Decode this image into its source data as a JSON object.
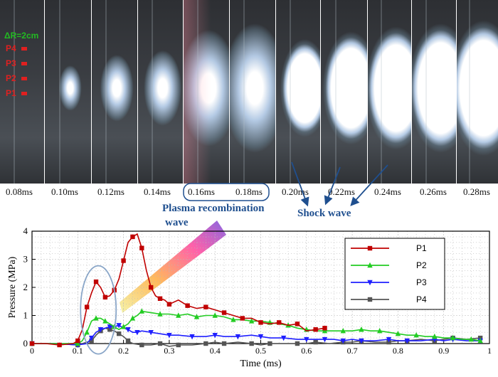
{
  "frames": {
    "labels": [
      "0.08ms",
      "0.10ms",
      "0.12ms",
      "0.14ms",
      "0.16ms",
      "0.18ms",
      "0.20ms",
      "0.22ms",
      "0.24ms",
      "0.26ms",
      "0.28ms"
    ],
    "sensor_spacing": "ΔR=2cm",
    "sensor_names": [
      "P4",
      "P3",
      "P2",
      "P1"
    ]
  },
  "annotations": {
    "plasma_line1": "Plasma recombination",
    "plasma_line2": "wave",
    "shock": "Shock wave"
  },
  "colors": {
    "P1": "#c00000",
    "P2": "#22cc22",
    "P3": "#1f1fff",
    "P4": "#555555",
    "annotation": "#1f4f8f",
    "sensor_text": "#e02020",
    "spacing_text": "#22bb22"
  },
  "chart_data": {
    "type": "line",
    "xlabel": "Time (ms)",
    "ylabel": "Pressure (MPa)",
    "xlim": [
      0,
      1
    ],
    "ylim": [
      0,
      4
    ],
    "x_ticks": [
      "0",
      "0.1",
      "0.2",
      "0.3",
      "0.4",
      "0.5",
      "0.6",
      "0.7",
      "0.8",
      "0.9",
      "1"
    ],
    "y_ticks": [
      "0",
      "1",
      "2",
      "3",
      "4"
    ],
    "grid": true,
    "legend_position": "right",
    "series": [
      {
        "name": "P1",
        "marker": "square",
        "color": "#c00000",
        "points": [
          [
            0,
            0
          ],
          [
            0.03,
            0
          ],
          [
            0.06,
            -0.05
          ],
          [
            0.09,
            0
          ],
          [
            0.1,
            0.1
          ],
          [
            0.11,
            0.5
          ],
          [
            0.12,
            1.3
          ],
          [
            0.13,
            1.8
          ],
          [
            0.14,
            2.2
          ],
          [
            0.15,
            2.0
          ],
          [
            0.16,
            1.65
          ],
          [
            0.17,
            1.7
          ],
          [
            0.18,
            1.9
          ],
          [
            0.19,
            2.3
          ],
          [
            0.2,
            2.95
          ],
          [
            0.21,
            3.6
          ],
          [
            0.22,
            3.8
          ],
          [
            0.23,
            3.9
          ],
          [
            0.24,
            3.4
          ],
          [
            0.25,
            2.6
          ],
          [
            0.26,
            2.0
          ],
          [
            0.27,
            1.7
          ],
          [
            0.28,
            1.6
          ],
          [
            0.29,
            1.55
          ],
          [
            0.3,
            1.4
          ],
          [
            0.32,
            1.55
          ],
          [
            0.34,
            1.35
          ],
          [
            0.36,
            1.25
          ],
          [
            0.38,
            1.3
          ],
          [
            0.4,
            1.2
          ],
          [
            0.42,
            1.1
          ],
          [
            0.44,
            1.0
          ],
          [
            0.46,
            0.9
          ],
          [
            0.48,
            0.9
          ],
          [
            0.5,
            0.75
          ],
          [
            0.52,
            0.7
          ],
          [
            0.54,
            0.75
          ],
          [
            0.56,
            0.65
          ],
          [
            0.58,
            0.7
          ],
          [
            0.6,
            0.45
          ],
          [
            0.62,
            0.5
          ],
          [
            0.64,
            0.55
          ]
        ]
      },
      {
        "name": "P2",
        "marker": "triangle-up",
        "color": "#22cc22",
        "points": [
          [
            0,
            0
          ],
          [
            0.05,
            0
          ],
          [
            0.1,
            0
          ],
          [
            0.11,
            0.1
          ],
          [
            0.12,
            0.4
          ],
          [
            0.13,
            0.8
          ],
          [
            0.14,
            0.9
          ],
          [
            0.15,
            0.9
          ],
          [
            0.16,
            0.8
          ],
          [
            0.17,
            0.7
          ],
          [
            0.18,
            0.6
          ],
          [
            0.19,
            0.5
          ],
          [
            0.2,
            0.6
          ],
          [
            0.21,
            0.7
          ],
          [
            0.22,
            0.9
          ],
          [
            0.23,
            1.0
          ],
          [
            0.24,
            1.15
          ],
          [
            0.26,
            1.1
          ],
          [
            0.28,
            1.05
          ],
          [
            0.3,
            1.05
          ],
          [
            0.32,
            1.0
          ],
          [
            0.34,
            1.05
          ],
          [
            0.36,
            0.95
          ],
          [
            0.38,
            1.0
          ],
          [
            0.4,
            1.0
          ],
          [
            0.42,
            0.95
          ],
          [
            0.44,
            0.85
          ],
          [
            0.46,
            0.85
          ],
          [
            0.48,
            0.8
          ],
          [
            0.5,
            0.8
          ],
          [
            0.52,
            0.75
          ],
          [
            0.54,
            0.7
          ],
          [
            0.56,
            0.65
          ],
          [
            0.58,
            0.55
          ],
          [
            0.6,
            0.5
          ],
          [
            0.62,
            0.45
          ],
          [
            0.64,
            0.45
          ],
          [
            0.66,
            0.45
          ],
          [
            0.68,
            0.45
          ],
          [
            0.7,
            0.45
          ],
          [
            0.72,
            0.5
          ],
          [
            0.74,
            0.45
          ],
          [
            0.76,
            0.45
          ],
          [
            0.78,
            0.4
          ],
          [
            0.8,
            0.35
          ],
          [
            0.82,
            0.3
          ],
          [
            0.84,
            0.3
          ],
          [
            0.86,
            0.25
          ],
          [
            0.88,
            0.25
          ],
          [
            0.9,
            0.2
          ],
          [
            0.92,
            0.2
          ],
          [
            0.94,
            0.15
          ],
          [
            0.96,
            0.15
          ],
          [
            0.98,
            0.1
          ]
        ]
      },
      {
        "name": "P3",
        "marker": "triangle-down",
        "color": "#1f1fff",
        "points": [
          [
            0,
            0
          ],
          [
            0.05,
            0
          ],
          [
            0.1,
            -0.05
          ],
          [
            0.12,
            0
          ],
          [
            0.13,
            0.2
          ],
          [
            0.14,
            0.4
          ],
          [
            0.15,
            0.5
          ],
          [
            0.16,
            0.55
          ],
          [
            0.17,
            0.6
          ],
          [
            0.18,
            0.6
          ],
          [
            0.19,
            0.65
          ],
          [
            0.2,
            0.55
          ],
          [
            0.21,
            0.5
          ],
          [
            0.22,
            0.4
          ],
          [
            0.23,
            0.4
          ],
          [
            0.24,
            0.45
          ],
          [
            0.26,
            0.4
          ],
          [
            0.28,
            0.35
          ],
          [
            0.3,
            0.3
          ],
          [
            0.32,
            0.3
          ],
          [
            0.35,
            0.25
          ],
          [
            0.38,
            0.25
          ],
          [
            0.4,
            0.3
          ],
          [
            0.42,
            0.25
          ],
          [
            0.45,
            0.25
          ],
          [
            0.48,
            0.3
          ],
          [
            0.5,
            0.25
          ],
          [
            0.52,
            0.2
          ],
          [
            0.55,
            0.2
          ],
          [
            0.58,
            0.15
          ],
          [
            0.6,
            0.15
          ],
          [
            0.62,
            0.15
          ],
          [
            0.64,
            0.15
          ],
          [
            0.66,
            0.15
          ],
          [
            0.68,
            0.1
          ],
          [
            0.7,
            0.15
          ],
          [
            0.72,
            0.1
          ],
          [
            0.75,
            0.1
          ],
          [
            0.78,
            0.15
          ],
          [
            0.8,
            0.1
          ],
          [
            0.82,
            0.1
          ],
          [
            0.85,
            0.1
          ],
          [
            0.88,
            0.15
          ],
          [
            0.9,
            0.1
          ],
          [
            0.92,
            0.15
          ],
          [
            0.95,
            0.1
          ],
          [
            0.98,
            0.1
          ]
        ]
      },
      {
        "name": "P4",
        "marker": "square",
        "color": "#555555",
        "points": [
          [
            0,
            0
          ],
          [
            0.05,
            0
          ],
          [
            0.1,
            -0.05
          ],
          [
            0.12,
            0.05
          ],
          [
            0.13,
            0.1
          ],
          [
            0.14,
            0.3
          ],
          [
            0.15,
            0.45
          ],
          [
            0.16,
            0.55
          ],
          [
            0.17,
            0.5
          ],
          [
            0.18,
            0.45
          ],
          [
            0.19,
            0.35
          ],
          [
            0.2,
            0.25
          ],
          [
            0.21,
            0.1
          ],
          [
            0.22,
            0
          ],
          [
            0.24,
            -0.05
          ],
          [
            0.26,
            -0.05
          ],
          [
            0.28,
            0
          ],
          [
            0.3,
            -0.1
          ],
          [
            0.32,
            -0.05
          ],
          [
            0.35,
            -0.05
          ],
          [
            0.38,
            0
          ],
          [
            0.4,
            0.05
          ],
          [
            0.42,
            0
          ],
          [
            0.45,
            0.05
          ],
          [
            0.48,
            0
          ],
          [
            0.5,
            -0.05
          ],
          [
            0.52,
            0
          ],
          [
            0.55,
            0
          ],
          [
            0.58,
            0
          ],
          [
            0.6,
            0
          ],
          [
            0.62,
            0.05
          ],
          [
            0.65,
            0
          ],
          [
            0.68,
            0.05
          ],
          [
            0.7,
            0.05
          ],
          [
            0.72,
            0.1
          ],
          [
            0.75,
            0.05
          ],
          [
            0.78,
            0.05
          ],
          [
            0.8,
            0.1
          ],
          [
            0.82,
            0.1
          ],
          [
            0.85,
            0.15
          ],
          [
            0.88,
            0.1
          ],
          [
            0.9,
            0.15
          ],
          [
            0.92,
            0.2
          ],
          [
            0.95,
            0.15
          ],
          [
            0.98,
            0.2
          ]
        ]
      }
    ]
  }
}
